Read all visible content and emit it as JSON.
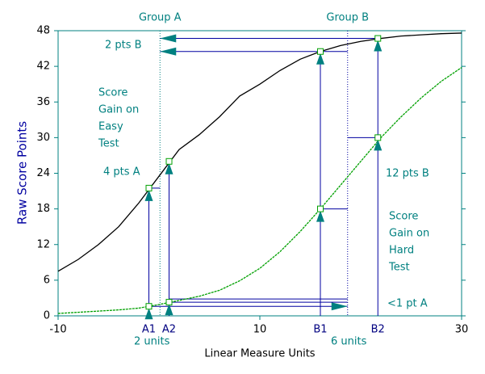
{
  "chart_data": {
    "type": "line",
    "x_label": "Linear Measure Units",
    "y_label": "Raw Score Points",
    "x": [
      -10,
      -8,
      -6,
      -4,
      -2,
      0,
      2,
      4,
      6,
      8,
      10,
      12,
      14,
      16,
      18,
      20,
      22,
      24,
      26,
      28,
      30
    ],
    "series": [
      {
        "name": "Easy Test",
        "color": "#000000",
        "values": [
          7.5,
          9.5,
          12,
          15,
          19,
          23.5,
          28,
          30.5,
          33.5,
          37,
          39,
          41.3,
          43.2,
          44.5,
          45.5,
          46.2,
          46.7,
          47.1,
          47.3,
          47.5,
          47.6
        ]
      },
      {
        "name": "Hard Test",
        "color": "#00a000",
        "values": [
          0.4,
          0.6,
          0.8,
          1.0,
          1.3,
          1.9,
          2.6,
          3.3,
          4.3,
          5.9,
          8,
          10.8,
          14.2,
          18,
          22,
          26,
          30,
          33.5,
          36.7,
          39.5,
          41.8
        ]
      }
    ],
    "xlim": [
      -10,
      30
    ],
    "xticks": [
      -10,
      10,
      30
    ],
    "ylim": [
      0,
      48
    ],
    "yticks": [
      0,
      6,
      12,
      18,
      24,
      30,
      36,
      42,
      48
    ],
    "markers": [
      {
        "label": "A1",
        "x": -1,
        "easy": 21.5,
        "hard": 1.6
      },
      {
        "label": "A2",
        "x": 1,
        "easy": 26,
        "hard": 2.3
      },
      {
        "label": "B1",
        "x": 16,
        "easy": 44.5,
        "hard": 18
      },
      {
        "label": "B2",
        "x": 21.7,
        "easy": 46.7,
        "hard": 30
      }
    ],
    "groups": [
      {
        "label": "Group A",
        "x": 0.1
      },
      {
        "label": "Group B",
        "x": 18.7
      }
    ],
    "annotations": [
      "2 pts B",
      "Score",
      "Gain on",
      "Easy",
      "Test",
      "4 pts A",
      "12 pts B",
      "Score",
      "Gain on",
      "Hard",
      "Test",
      "<1 pt A",
      "2 units",
      "6 units"
    ]
  }
}
